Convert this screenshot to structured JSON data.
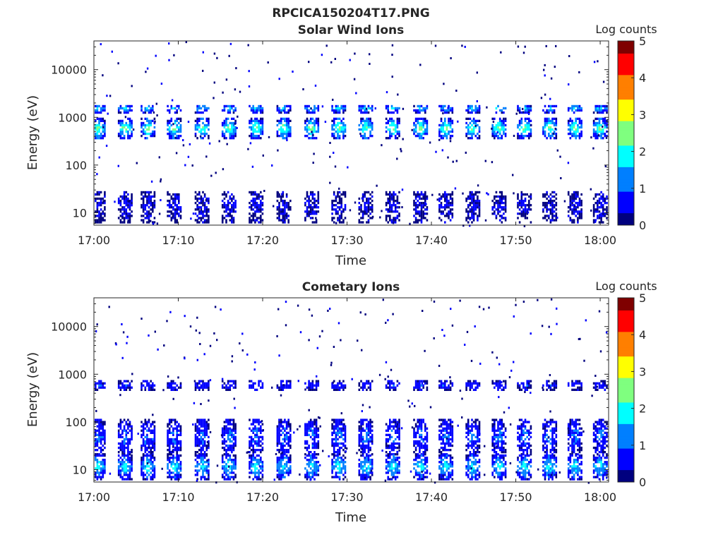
{
  "figure": {
    "filename": "RPCICA150204T17.PNG"
  },
  "colormap": [
    "#00007f",
    "#0000ff",
    "#007fff",
    "#00ffff",
    "#7fff7f",
    "#ffff00",
    "#ff7f00",
    "#ff0000",
    "#7f0000"
  ],
  "chart_data": [
    {
      "type": "heatmap",
      "title": "Solar Wind Ions",
      "xlabel": "Time",
      "ylabel": "Energy (eV)",
      "x_ticks": [
        "17:00",
        "17:10",
        "17:20",
        "17:30",
        "17:40",
        "17:50",
        "18:00"
      ],
      "xlim": [
        "17:00",
        "18:01"
      ],
      "y_scale": "log",
      "y_ticks": [
        10,
        100,
        1000,
        10000
      ],
      "y_tick_labels": [
        "10",
        "100",
        "1000",
        "10000"
      ],
      "ylim": [
        5.5,
        40000
      ],
      "colorbar": {
        "label": "Log counts",
        "range": [
          0,
          5
        ],
        "ticks": [
          "0",
          "1",
          "2",
          "3",
          "4",
          "5"
        ]
      },
      "sweep_times_min": [
        0.3,
        3.5,
        6.2,
        9.3,
        12.6,
        15.8,
        19.0,
        22.3,
        25.6,
        28.8,
        32.0,
        35.2,
        38.5,
        41.5,
        44.7,
        47.8,
        50.8,
        53.8,
        56.8,
        59.8
      ],
      "bands": [
        {
          "energy_low_eV": 350,
          "energy_high_eV": 900,
          "log_counts_peak": 2.6
        },
        {
          "energy_low_eV": 1200,
          "energy_high_eV": 1800,
          "log_counts_peak": 1.8
        },
        {
          "energy_low_eV": 6,
          "energy_high_eV": 28,
          "log_counts_peak": 0.5
        }
      ]
    },
    {
      "type": "heatmap",
      "title": "Cometary Ions",
      "xlabel": "Time",
      "ylabel": "Energy (eV)",
      "x_ticks": [
        "17:00",
        "17:10",
        "17:20",
        "17:30",
        "17:40",
        "17:50",
        "18:00"
      ],
      "xlim": [
        "17:00",
        "18:01"
      ],
      "y_scale": "log",
      "y_ticks": [
        10,
        100,
        1000,
        10000
      ],
      "y_tick_labels": [
        "10",
        "100",
        "1000",
        "10000"
      ],
      "ylim": [
        5.5,
        40000
      ],
      "colorbar": {
        "label": "Log counts",
        "range": [
          0,
          5
        ],
        "ticks": [
          "0",
          "1",
          "2",
          "3",
          "4",
          "5"
        ]
      },
      "sweep_times_min": [
        0.3,
        3.5,
        6.2,
        9.3,
        12.6,
        15.8,
        19.0,
        22.3,
        25.6,
        28.8,
        32.0,
        35.2,
        38.5,
        41.5,
        44.7,
        47.8,
        50.8,
        53.8,
        56.8,
        59.8
      ],
      "bands": [
        {
          "energy_low_eV": 450,
          "energy_high_eV": 700,
          "log_counts_peak": 0.9
        },
        {
          "energy_low_eV": 20,
          "energy_high_eV": 110,
          "log_counts_peak": 1.2
        },
        {
          "energy_low_eV": 6,
          "energy_high_eV": 20,
          "log_counts_peak": 2.0
        }
      ]
    }
  ]
}
